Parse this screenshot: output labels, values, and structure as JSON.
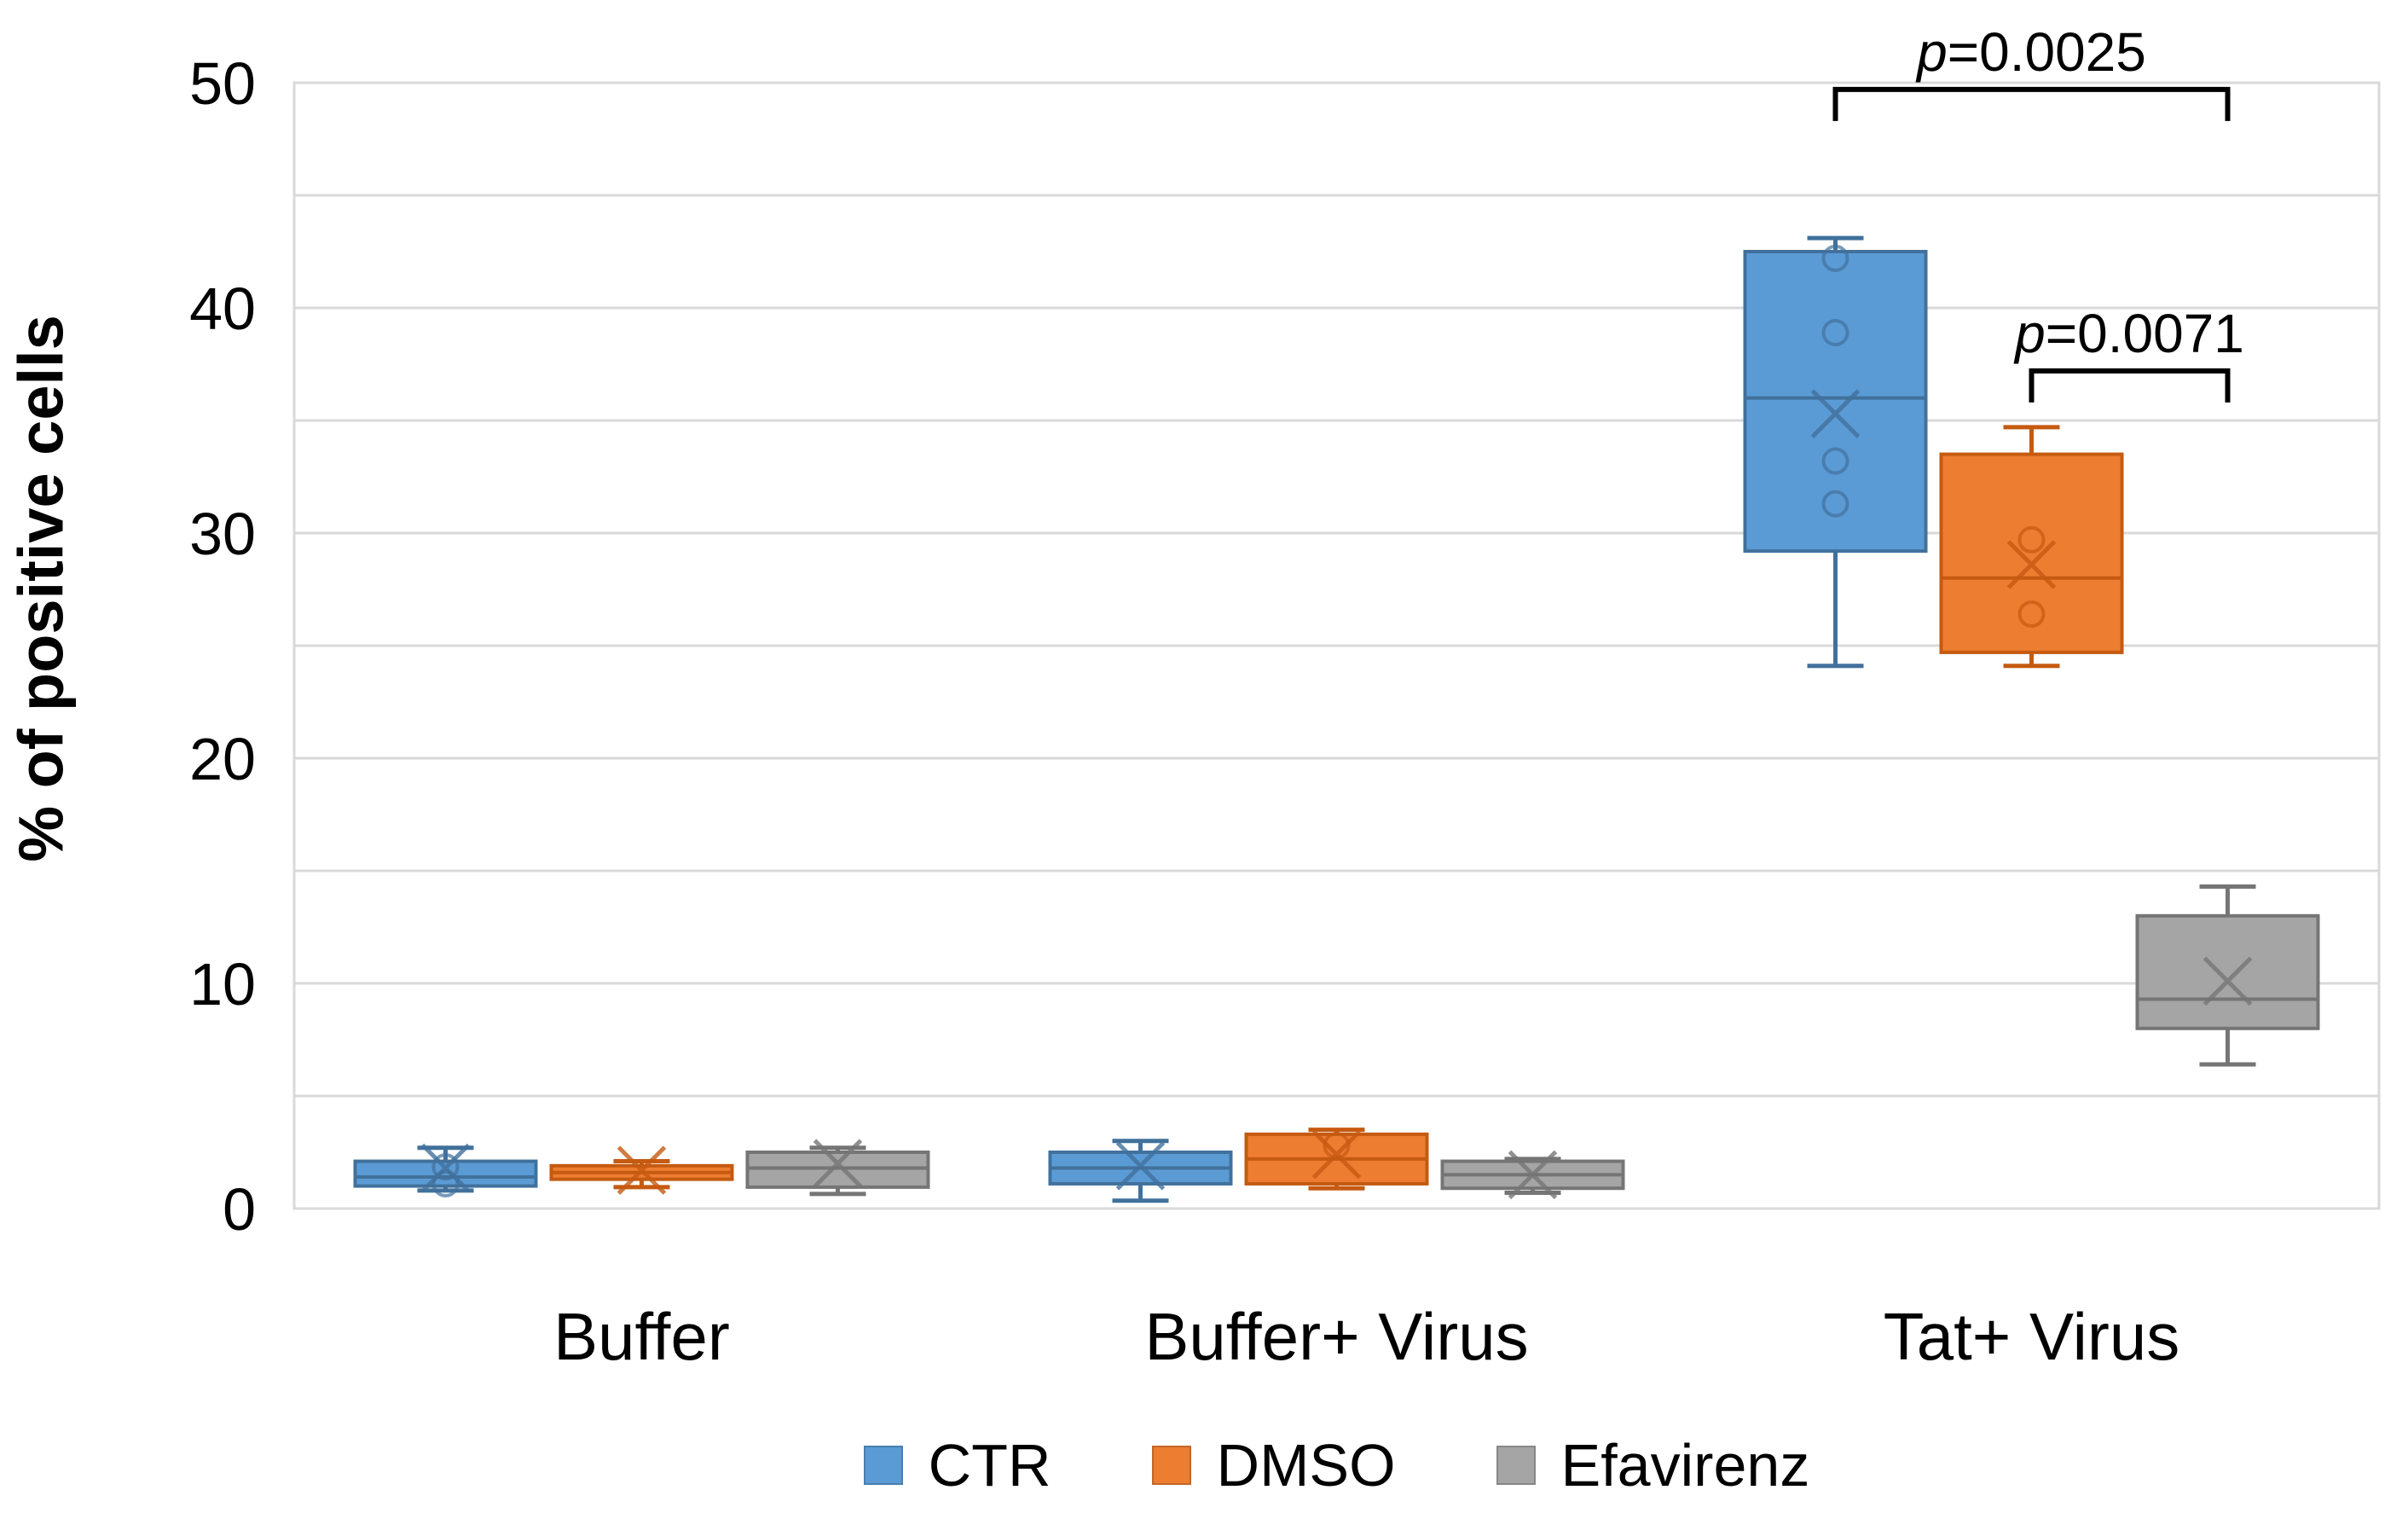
{
  "chart_data": {
    "type": "box",
    "title": "",
    "ylabel": "% of positive cells",
    "xlabel": "",
    "ylim": [
      0,
      50
    ],
    "y_ticks": [
      0,
      10,
      20,
      30,
      40,
      50
    ],
    "gridline_step": 5,
    "grid": true,
    "gridline_color": "#D9D9D9",
    "legend_position": "bottom",
    "categories": [
      "Buffer",
      "Buffer+ Virus",
      "Tat+ Virus"
    ],
    "series": [
      {
        "name": "CTR",
        "fill": "#5B9BD5",
        "stroke": "#41719C",
        "boxes": [
          {
            "low": 0.8,
            "q1": 1.0,
            "median": 1.4,
            "q3": 2.1,
            "high": 2.7,
            "mean": 1.8,
            "points": [
              1.85,
              1.1
            ]
          },
          {
            "low": 0.35,
            "q1": 1.1,
            "median": 1.8,
            "q3": 2.5,
            "high": 3.0,
            "mean": 1.9,
            "points": []
          },
          {
            "low": 24.1,
            "q1": 29.2,
            "median": 36.0,
            "q3": 42.5,
            "high": 43.1,
            "mean": 35.3,
            "points": [
              42.2,
              38.9,
              33.2,
              31.3
            ]
          }
        ]
      },
      {
        "name": "DMSO",
        "fill": "#ED7D31",
        "stroke": "#C55A11",
        "boxes": [
          {
            "low": 0.95,
            "q1": 1.3,
            "median": 1.6,
            "q3": 1.9,
            "high": 2.1,
            "mean": 1.7,
            "points": []
          },
          {
            "low": 0.9,
            "q1": 1.1,
            "median": 2.2,
            "q3": 3.3,
            "high": 3.5,
            "mean": 2.4,
            "points": [
              2.8
            ]
          },
          {
            "low": 24.1,
            "q1": 24.7,
            "median": 28.0,
            "q3": 33.5,
            "high": 34.7,
            "mean": 28.6,
            "points": [
              29.7,
              26.4
            ]
          }
        ]
      },
      {
        "name": "Efavirenz",
        "fill": "#A5A5A5",
        "stroke": "#757575",
        "boxes": [
          {
            "low": 0.65,
            "q1": 0.95,
            "median": 1.8,
            "q3": 2.5,
            "high": 2.7,
            "mean": 2.0,
            "points": []
          },
          {
            "low": 0.7,
            "q1": 0.9,
            "median": 1.5,
            "q3": 2.1,
            "high": 2.2,
            "mean": 1.5,
            "points": []
          },
          {
            "low": 6.4,
            "q1": 8.0,
            "median": 9.3,
            "q3": 13.0,
            "high": 14.3,
            "mean": 10.1,
            "points": []
          }
        ]
      }
    ],
    "annotations": [
      {
        "text": "p=0.0025",
        "category_index": 2,
        "series_from": 0,
        "series_to": 2,
        "bar_value": 49.7,
        "tick_drop": 1.4
      },
      {
        "text": "p=0.0071",
        "category_index": 2,
        "series_from": 1,
        "series_to": 2,
        "bar_value": 37.2,
        "tick_drop": 1.4
      }
    ]
  }
}
